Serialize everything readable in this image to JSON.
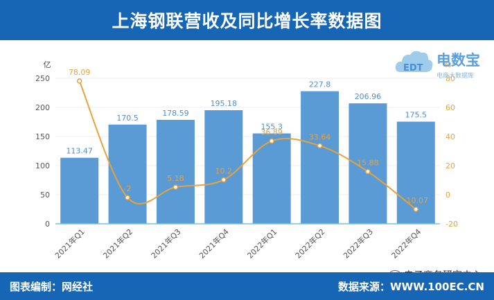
{
  "header": {
    "title": "上海钢联营收及同比增长率数据图"
  },
  "footer": {
    "left_text": "图表编制：网经社",
    "right_text": "数据来源：WWW.100EC.CN"
  },
  "watermark": {
    "text": "电子商务研究中心",
    "icon": "wechat-icon"
  },
  "logo": {
    "main": "电数宝",
    "sub": "电商大数据库",
    "badge": "EDT"
  },
  "colors": {
    "bar": "#5b9bd5",
    "line": "#e6a23c",
    "header": "#1766b5",
    "axis": "#7f7f7f"
  },
  "chart_data": {
    "type": "bar",
    "categories": [
      "2021年Q1",
      "2021年Q2",
      "2021年Q3",
      "2021年Q4",
      "2022年Q1",
      "2022年Q2",
      "2022年Q3",
      "2022年Q4"
    ],
    "ylabel": "亿",
    "ylim": [
      0,
      250
    ],
    "yticks": [
      0,
      50,
      100,
      150,
      200,
      250
    ],
    "y2label": "%",
    "y2lim": [
      -20,
      80
    ],
    "y2ticks": [
      -20,
      0,
      20,
      40,
      60,
      80
    ],
    "grid": true,
    "series": [
      {
        "type": "bar",
        "axis": "left",
        "values": [
          113.47,
          170.5,
          178.59,
          195.18,
          155.3,
          227.8,
          206.96,
          175.5
        ],
        "labels": [
          "113.47",
          "170.5",
          "178.59",
          "195.18",
          "155.3",
          "227.8",
          "206.96",
          "175.5"
        ]
      },
      {
        "type": "line",
        "axis": "right",
        "values": [
          78.09,
          -2,
          5.18,
          10.2,
          36.89,
          33.64,
          15.88,
          -10.07
        ],
        "labels": [
          "78.09",
          "-2",
          "5.18",
          "10.2",
          "36.89",
          "33.64",
          "15.88",
          "-10.07"
        ]
      }
    ]
  }
}
